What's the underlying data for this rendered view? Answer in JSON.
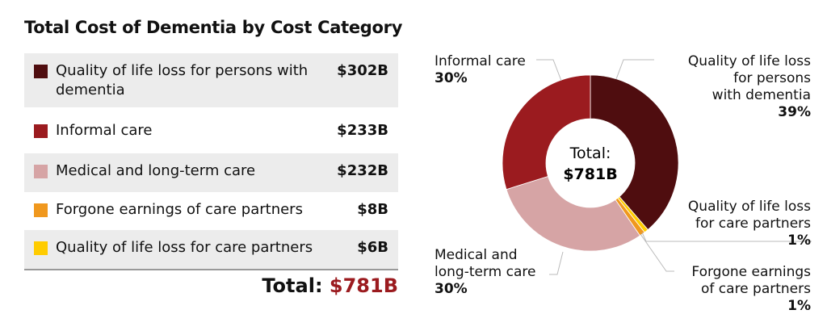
{
  "title": "Total Cost of Dementia by Cost Category",
  "chart_data": {
    "type": "pie",
    "donut": true,
    "title": "Total Cost of Dementia by Cost Category",
    "center_label": {
      "line1": "Total:",
      "line2": "$781B"
    },
    "categories": [
      {
        "label": "Quality of life loss for persons with dementia",
        "value": 302,
        "value_label": "$302B",
        "percent": "39%",
        "color": "#4f0d0f"
      },
      {
        "label": "Informal care",
        "value": 233,
        "value_label": "$233B",
        "percent": "30%",
        "color": "#9b1b1f"
      },
      {
        "label": "Medical and long-term care",
        "value": 232,
        "value_label": "$232B",
        "percent": "30%",
        "color": "#d6a4a5"
      },
      {
        "label": "Forgone earnings of care partners",
        "value": 8,
        "value_label": "$8B",
        "percent": "1%",
        "color": "#f0981e"
      },
      {
        "label": "Quality of life loss for care partners",
        "value": 6,
        "value_label": "$6B",
        "percent": "1%",
        "color": "#ffcc00"
      }
    ],
    "slice_order_clockwise_from_top": [
      0,
      4,
      3,
      2,
      1
    ],
    "units": "billions USD"
  },
  "chart_labels": {
    "qol_persons": [
      "Quality of life loss",
      "for persons",
      "with dementia"
    ],
    "informal": [
      "Informal care"
    ],
    "medical": [
      "Medical and",
      "long-term care"
    ],
    "qol_partners": [
      "Quality of life loss",
      "for care partners"
    ],
    "forgone": [
      "Forgone earnings",
      "of care partners"
    ]
  },
  "total": {
    "label": "Total:",
    "value": "$781B"
  }
}
